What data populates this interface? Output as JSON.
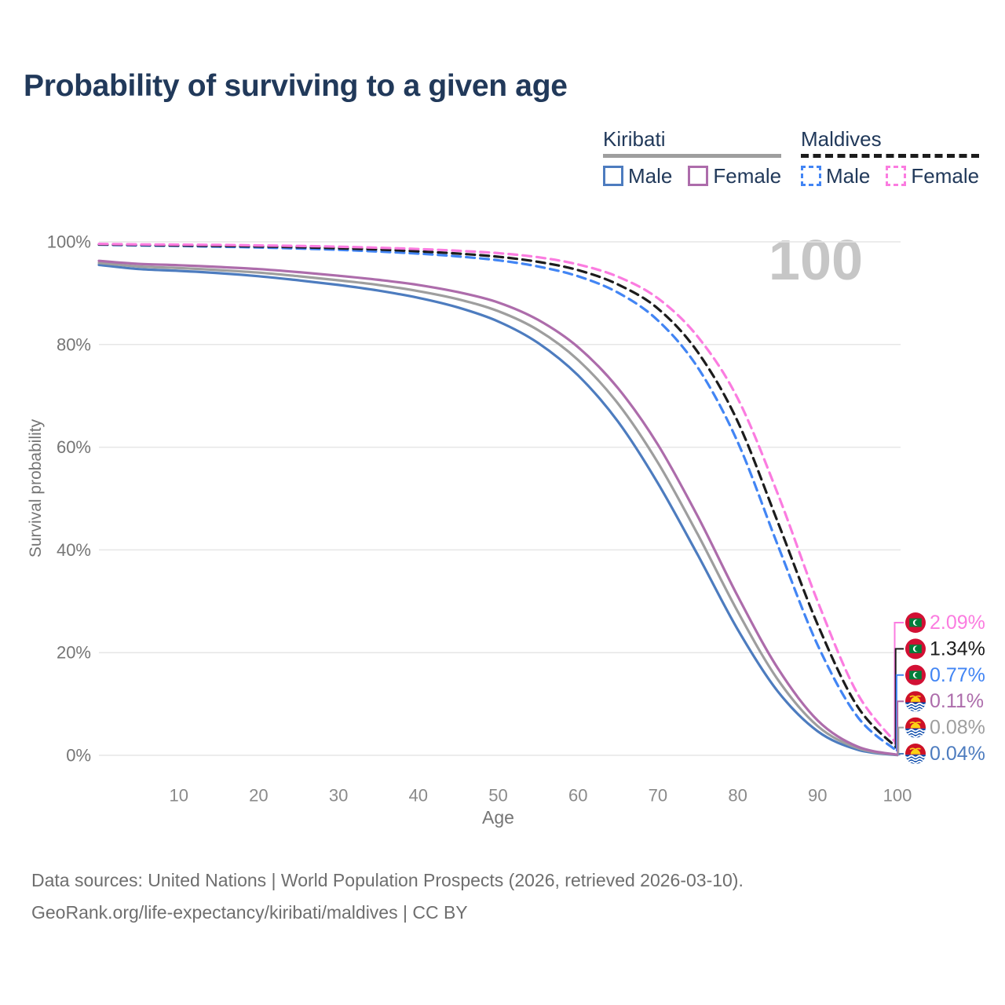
{
  "title": "Probability of surviving to a given age",
  "age_counter": "100",
  "legend": {
    "groups": [
      {
        "title": "Kiribati",
        "line_style": "solid",
        "line_color": "#9e9e9e",
        "items": [
          {
            "label": "Male",
            "color": "#4d7cbf",
            "dash": false
          },
          {
            "label": "Female",
            "color": "#ad6cab",
            "dash": false
          }
        ]
      },
      {
        "title": "Maldives",
        "line_style": "dashed",
        "line_color": "#1c1c1c",
        "items": [
          {
            "label": "Male",
            "color": "#4285f4",
            "dash": true
          },
          {
            "label": "Female",
            "color": "#fb7ce0",
            "dash": true
          }
        ]
      }
    ]
  },
  "chart_data": {
    "type": "line",
    "title": "Probability of surviving to a given age",
    "xlabel": "Age",
    "ylabel": "Survival probability",
    "xlim": [
      0,
      100
    ],
    "ylim": [
      0,
      100
    ],
    "xticks": [
      10,
      20,
      30,
      40,
      50,
      60,
      70,
      80,
      90,
      100
    ],
    "yticks": [
      0,
      20,
      40,
      60,
      80,
      100
    ],
    "ytick_format": "percent",
    "grid": "horizontal",
    "x": [
      0,
      5,
      10,
      15,
      20,
      25,
      30,
      35,
      40,
      45,
      50,
      55,
      60,
      65,
      70,
      75,
      80,
      85,
      90,
      95,
      100
    ],
    "series": [
      {
        "name": "Maldives Female",
        "country": "Maldives",
        "sex": "Female",
        "color": "#fb7ce0",
        "dash": true,
        "flag": "maldives",
        "end_label": "2.09%",
        "values": [
          99.6,
          99.5,
          99.45,
          99.4,
          99.3,
          99.2,
          99.05,
          98.85,
          98.6,
          98.25,
          97.8,
          97.0,
          95.6,
          93.2,
          89.0,
          81.5,
          69.5,
          51.0,
          30.0,
          12.0,
          2.09
        ]
      },
      {
        "name": "Maldives Both sexes",
        "country": "Maldives",
        "sex": "Both",
        "color": "#1c1c1c",
        "dash": true,
        "flag": "maldives",
        "end_label": "1.34%",
        "values": [
          99.5,
          99.4,
          99.3,
          99.2,
          99.1,
          98.95,
          98.75,
          98.5,
          98.15,
          97.7,
          97.1,
          96.1,
          94.5,
          91.7,
          87.0,
          78.5,
          65.0,
          45.5,
          25.5,
          9.5,
          1.34
        ]
      },
      {
        "name": "Maldives Male",
        "country": "Maldives",
        "sex": "Male",
        "color": "#4285f4",
        "dash": true,
        "flag": "maldives",
        "end_label": "0.77%",
        "values": [
          99.45,
          99.3,
          99.2,
          99.05,
          98.9,
          98.7,
          98.45,
          98.1,
          97.7,
          97.15,
          96.4,
          95.2,
          93.3,
          90.1,
          84.7,
          75.5,
          61.0,
          41.0,
          21.5,
          7.5,
          0.77
        ]
      },
      {
        "name": "Kiribati Female",
        "country": "Kiribati",
        "sex": "Female",
        "color": "#ad6cab",
        "dash": false,
        "flag": "kiribati",
        "end_label": "0.11%",
        "values": [
          96.3,
          95.7,
          95.45,
          95.1,
          94.7,
          94.1,
          93.4,
          92.6,
          91.6,
          90.2,
          88.2,
          84.8,
          79.5,
          71.5,
          60.5,
          46.5,
          31.0,
          17.0,
          6.8,
          1.7,
          0.11
        ]
      },
      {
        "name": "Kiribati Both sexes",
        "country": "Kiribati",
        "sex": "Both",
        "color": "#9e9e9e",
        "dash": false,
        "flag": "kiribati",
        "end_label": "0.08%",
        "values": [
          95.9,
          95.2,
          94.9,
          94.5,
          94.0,
          93.3,
          92.5,
          91.6,
          90.4,
          88.8,
          86.5,
          82.8,
          77.0,
          68.5,
          57.0,
          43.0,
          28.0,
          14.8,
          5.7,
          1.4,
          0.08
        ]
      },
      {
        "name": "Kiribati Male",
        "country": "Kiribati",
        "sex": "Male",
        "color": "#4d7cbf",
        "dash": false,
        "flag": "kiribati",
        "end_label": "0.04%",
        "values": [
          95.5,
          94.7,
          94.35,
          93.9,
          93.3,
          92.5,
          91.6,
          90.5,
          89.1,
          87.2,
          84.5,
          80.3,
          74.0,
          65.0,
          53.0,
          39.0,
          24.5,
          12.5,
          4.7,
          1.1,
          0.04
        ]
      }
    ]
  },
  "footer": {
    "line1": "Data sources: United Nations | World Population Prospects (2026, retrieved 2026-03-10).",
    "line2": "GeoRank.org/life-expectancy/kiribati/maldives | CC BY"
  }
}
